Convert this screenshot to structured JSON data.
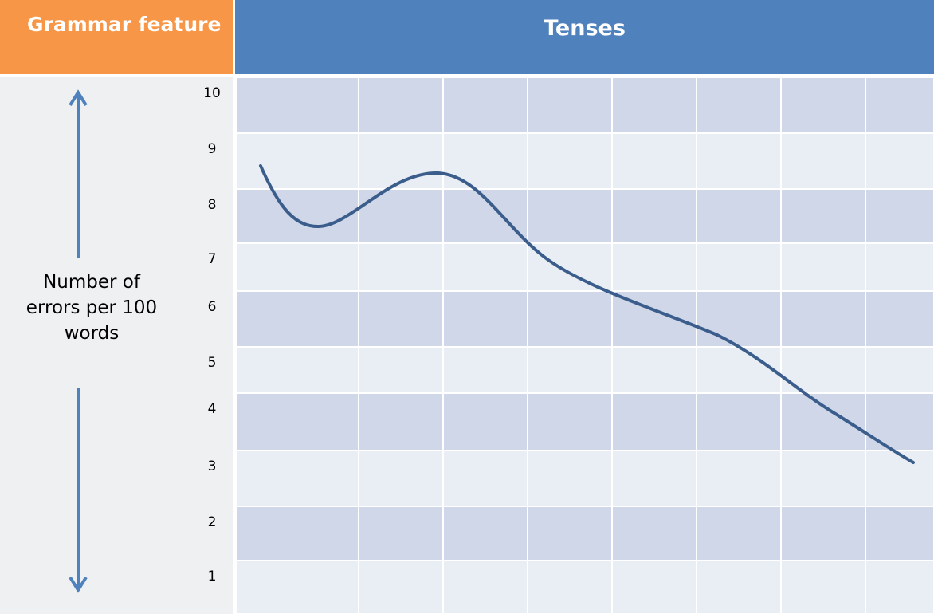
{
  "header": {
    "feature": "Grammar feature",
    "topic": "Tenses"
  },
  "y_axis_label": "Number of errors per 100 words",
  "row_labels": [
    "10",
    "9",
    "8",
    "7",
    "6",
    "5",
    "4",
    "3",
    "2",
    "1"
  ]
}
